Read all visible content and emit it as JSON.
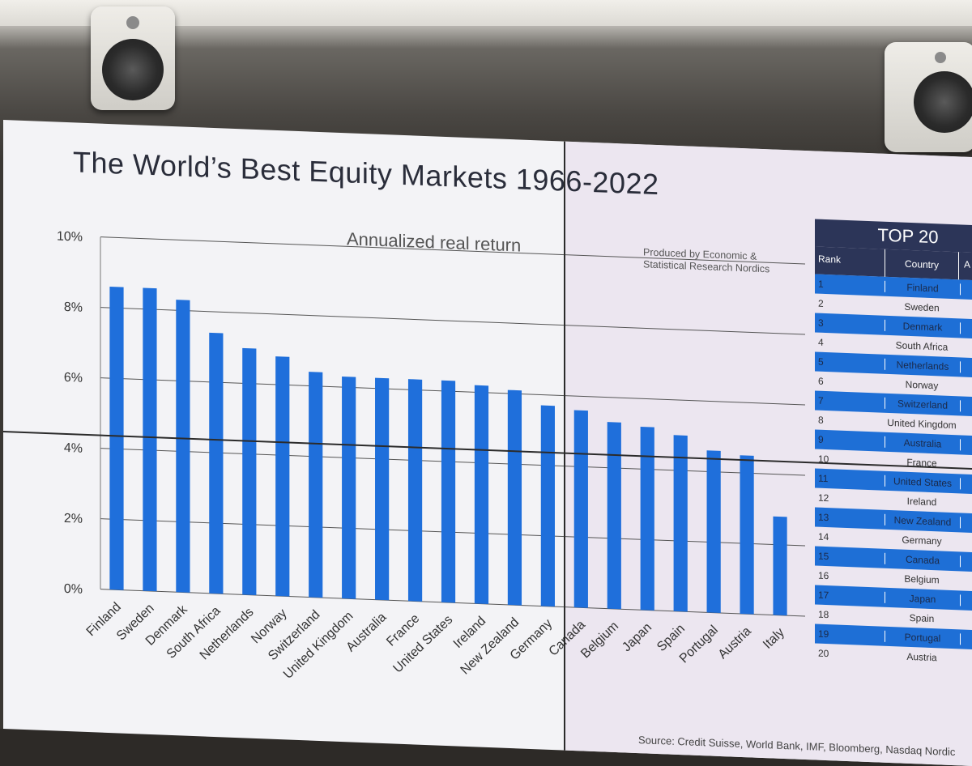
{
  "title": "The World’s Best Equity Markets 1966-2022",
  "subtitle": "Annualized real return",
  "produced_by": [
    "Produced by Economic &",
    "Statistical Research Nordics"
  ],
  "source": "Source: Credit Suisse, World Bank, IMF, Bloomberg, Nasdaq Nordic",
  "colors": {
    "bar": "#1f6fdb",
    "title": "#2a2d3a",
    "table_header": "#2c3558",
    "table_alt": "#1e6fd6"
  },
  "chart_data": {
    "type": "bar",
    "title": "The World’s Best Equity Markets 1966-2022",
    "subtitle": "Annualized real return",
    "categories": [
      "Finland",
      "Sweden",
      "Denmark",
      "South Africa",
      "Netherlands",
      "Norway",
      "Switzerland",
      "United Kingdom",
      "Australia",
      "France",
      "United States",
      "Ireland",
      "New Zealand",
      "Germany",
      "Canada",
      "Belgium",
      "Japan",
      "Spain",
      "Portugal",
      "Austria",
      "Italy"
    ],
    "values": [
      8.6,
      8.6,
      8.3,
      7.4,
      7.0,
      6.8,
      6.4,
      6.3,
      6.3,
      6.3,
      6.3,
      6.2,
      6.1,
      5.7,
      5.6,
      5.3,
      5.2,
      5.0,
      4.6,
      4.5,
      2.8
    ],
    "yticks": [
      "0%",
      "2%",
      "4%",
      "6%",
      "8%",
      "10%"
    ],
    "ylim": [
      0,
      10
    ],
    "grid": true
  },
  "table": {
    "title": "TOP 20",
    "headers": [
      "Rank",
      "Country",
      "A"
    ],
    "rows": [
      {
        "rank": "1",
        "country": "Finland"
      },
      {
        "rank": "2",
        "country": "Sweden"
      },
      {
        "rank": "3",
        "country": "Denmark"
      },
      {
        "rank": "4",
        "country": "South Africa"
      },
      {
        "rank": "5",
        "country": "Netherlands"
      },
      {
        "rank": "6",
        "country": "Norway"
      },
      {
        "rank": "7",
        "country": "Switzerland"
      },
      {
        "rank": "8",
        "country": "United Kingdom"
      },
      {
        "rank": "9",
        "country": "Australia"
      },
      {
        "rank": "10",
        "country": "France"
      },
      {
        "rank": "11",
        "country": "United States"
      },
      {
        "rank": "12",
        "country": "Ireland"
      },
      {
        "rank": "13",
        "country": "New Zealand"
      },
      {
        "rank": "14",
        "country": "Germany"
      },
      {
        "rank": "15",
        "country": "Canada"
      },
      {
        "rank": "16",
        "country": "Belgium"
      },
      {
        "rank": "17",
        "country": "Japan"
      },
      {
        "rank": "18",
        "country": "Spain"
      },
      {
        "rank": "19",
        "country": "Portugal"
      },
      {
        "rank": "20",
        "country": "Austria"
      }
    ]
  }
}
